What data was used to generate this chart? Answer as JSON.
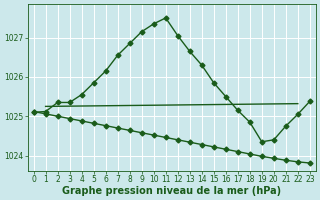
{
  "title": "Graphe pression niveau de la mer (hPa)",
  "background_color": "#cce8eb",
  "grid_color": "#ffffff",
  "line_color": "#1a5c1a",
  "x_values": [
    0,
    1,
    2,
    3,
    4,
    5,
    6,
    7,
    8,
    9,
    10,
    11,
    12,
    13,
    14,
    15,
    16,
    17,
    18,
    19,
    20,
    21,
    22,
    23
  ],
  "y_main": [
    1025.1,
    1025.12,
    1025.35,
    1025.35,
    1025.55,
    1025.85,
    1026.15,
    1026.55,
    1026.85,
    1027.15,
    1027.35,
    1027.5,
    1027.05,
    1026.65,
    1026.3,
    1025.85,
    1025.5,
    1025.15,
    1024.85,
    1024.35,
    1024.4,
    1024.75,
    1025.05,
    1025.38
  ],
  "y_descend": [
    1025.12,
    1025.06,
    1025.0,
    1024.94,
    1024.88,
    1024.82,
    1024.76,
    1024.7,
    1024.64,
    1024.58,
    1024.52,
    1024.46,
    1024.4,
    1024.34,
    1024.28,
    1024.22,
    1024.16,
    1024.1,
    1024.04,
    1023.98,
    1023.93,
    1023.88,
    1023.84,
    1023.81
  ],
  "ylim": [
    1023.6,
    1027.85
  ],
  "xlim": [
    -0.5,
    23.5
  ],
  "yticks": [
    1024,
    1025,
    1026,
    1027
  ],
  "xticks": [
    0,
    1,
    2,
    3,
    4,
    5,
    6,
    7,
    8,
    9,
    10,
    11,
    12,
    13,
    14,
    15,
    16,
    17,
    18,
    19,
    20,
    21,
    22,
    23
  ],
  "marker": "D",
  "markersize": 2.5,
  "linewidth": 1.0,
  "title_fontsize": 7.0,
  "tick_fontsize": 5.5,
  "hline_x_start": 1,
  "hline_x_end": 22,
  "hline_y_start": 1025.25,
  "hline_y_end": 1025.32
}
